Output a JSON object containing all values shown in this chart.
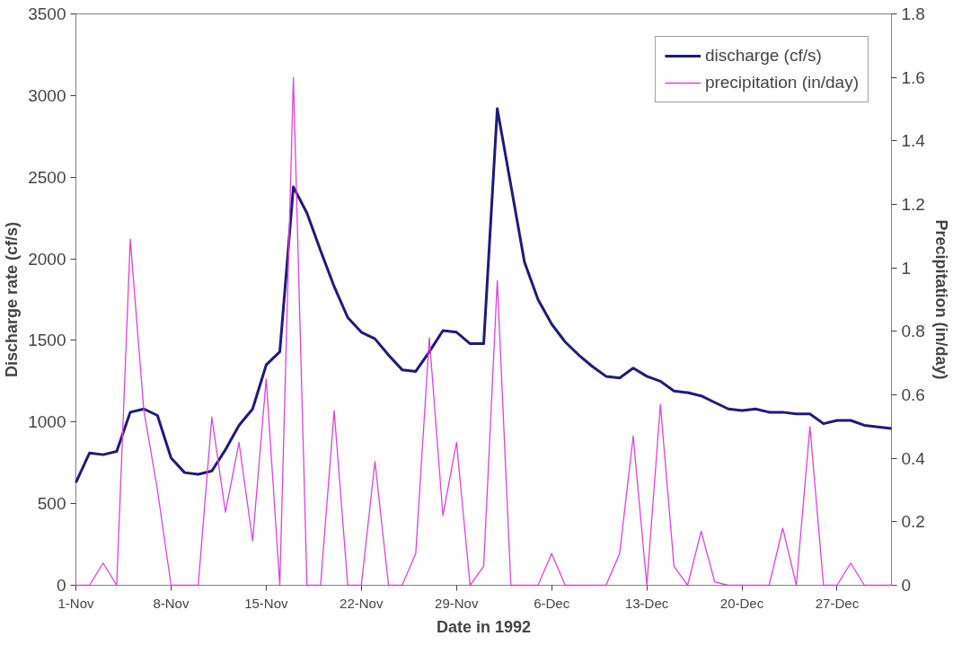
{
  "chart_data": {
    "type": "line",
    "xlabel": "Date in 1992",
    "ylabel": "Discharge rate (cf/s)",
    "y2label": "Precipitation (in/day)",
    "x": [
      "1992-11-01",
      "1992-11-02",
      "1992-11-03",
      "1992-11-04",
      "1992-11-05",
      "1992-11-06",
      "1992-11-07",
      "1992-11-08",
      "1992-11-09",
      "1992-11-10",
      "1992-11-11",
      "1992-11-12",
      "1992-11-13",
      "1992-11-14",
      "1992-11-15",
      "1992-11-16",
      "1992-11-17",
      "1992-11-18",
      "1992-11-19",
      "1992-11-20",
      "1992-11-21",
      "1992-11-22",
      "1992-11-23",
      "1992-11-24",
      "1992-11-25",
      "1992-11-26",
      "1992-11-27",
      "1992-11-28",
      "1992-11-29",
      "1992-11-30",
      "1992-12-01",
      "1992-12-02",
      "1992-12-03",
      "1992-12-04",
      "1992-12-05",
      "1992-12-06",
      "1992-12-07",
      "1992-12-08",
      "1992-12-09",
      "1992-12-10",
      "1992-12-11",
      "1992-12-12",
      "1992-12-13",
      "1992-12-14",
      "1992-12-15",
      "1992-12-16",
      "1992-12-17",
      "1992-12-18",
      "1992-12-19",
      "1992-12-20",
      "1992-12-21",
      "1992-12-22",
      "1992-12-23",
      "1992-12-24",
      "1992-12-25",
      "1992-12-26",
      "1992-12-27",
      "1992-12-28",
      "1992-12-29",
      "1992-12-30",
      "1992-12-31"
    ],
    "series": [
      {
        "name": "discharge (cf/s)",
        "color": "#1f1a7a",
        "values": [
          630,
          810,
          800,
          820,
          1060,
          1080,
          1040,
          780,
          690,
          680,
          700,
          830,
          980,
          1080,
          1350,
          1430,
          2440,
          2280,
          2050,
          1830,
          1640,
          1550,
          1510,
          1410,
          1320,
          1310,
          1430,
          1560,
          1550,
          1480,
          1480,
          2920,
          2450,
          1980,
          1750,
          1600,
          1490,
          1410,
          1340,
          1280,
          1270,
          1330,
          1280,
          1250,
          1190,
          1180,
          1160,
          1120,
          1080,
          1070,
          1080,
          1060,
          1060,
          1050,
          1050,
          990,
          1010,
          1010,
          980,
          970,
          960
        ]
      },
      {
        "name": "precipitation (in/day)",
        "color": "#e040e0",
        "axis": "y2",
        "values": [
          0,
          0,
          0.07,
          0,
          1.09,
          0.55,
          0.3,
          0,
          0,
          0,
          0.53,
          0.23,
          0.45,
          0.14,
          0.65,
          0,
          1.6,
          0,
          0,
          0.55,
          0,
          0,
          0.39,
          0,
          0,
          0.1,
          0.78,
          0.22,
          0.45,
          0,
          0.06,
          0.96,
          0,
          0,
          0,
          0.1,
          0,
          0,
          0,
          0,
          0.1,
          0.47,
          0,
          0.57,
          0.06,
          0,
          0.17,
          0.01,
          0,
          0,
          0,
          0,
          0.18,
          0,
          0.5,
          0,
          0,
          0.07,
          0,
          0,
          0
        ]
      }
    ],
    "xlim": [
      "1992-11-01",
      "1992-12-31"
    ],
    "xticks": [
      {
        "value": "1992-11-01",
        "label": "1-Nov"
      },
      {
        "value": "1992-11-08",
        "label": "8-Nov"
      },
      {
        "value": "1992-11-15",
        "label": "15-Nov"
      },
      {
        "value": "1992-11-22",
        "label": "22-Nov"
      },
      {
        "value": "1992-11-29",
        "label": "29-Nov"
      },
      {
        "value": "1992-12-06",
        "label": "6-Dec"
      },
      {
        "value": "1992-12-13",
        "label": "13-Dec"
      },
      {
        "value": "1992-12-20",
        "label": "20-Dec"
      },
      {
        "value": "1992-12-27",
        "label": "27-Dec"
      }
    ],
    "ylim": [
      0,
      3500
    ],
    "yticks": [
      0,
      500,
      1000,
      1500,
      2000,
      2500,
      3000,
      3500
    ],
    "y2lim": [
      0,
      1.8
    ],
    "y2ticks": [
      0,
      0.2,
      0.4,
      0.6,
      0.8,
      1,
      1.2,
      1.4,
      1.6,
      1.8
    ],
    "grid": false,
    "legend": "top right",
    "marker": "none",
    "line_style": "solid"
  }
}
